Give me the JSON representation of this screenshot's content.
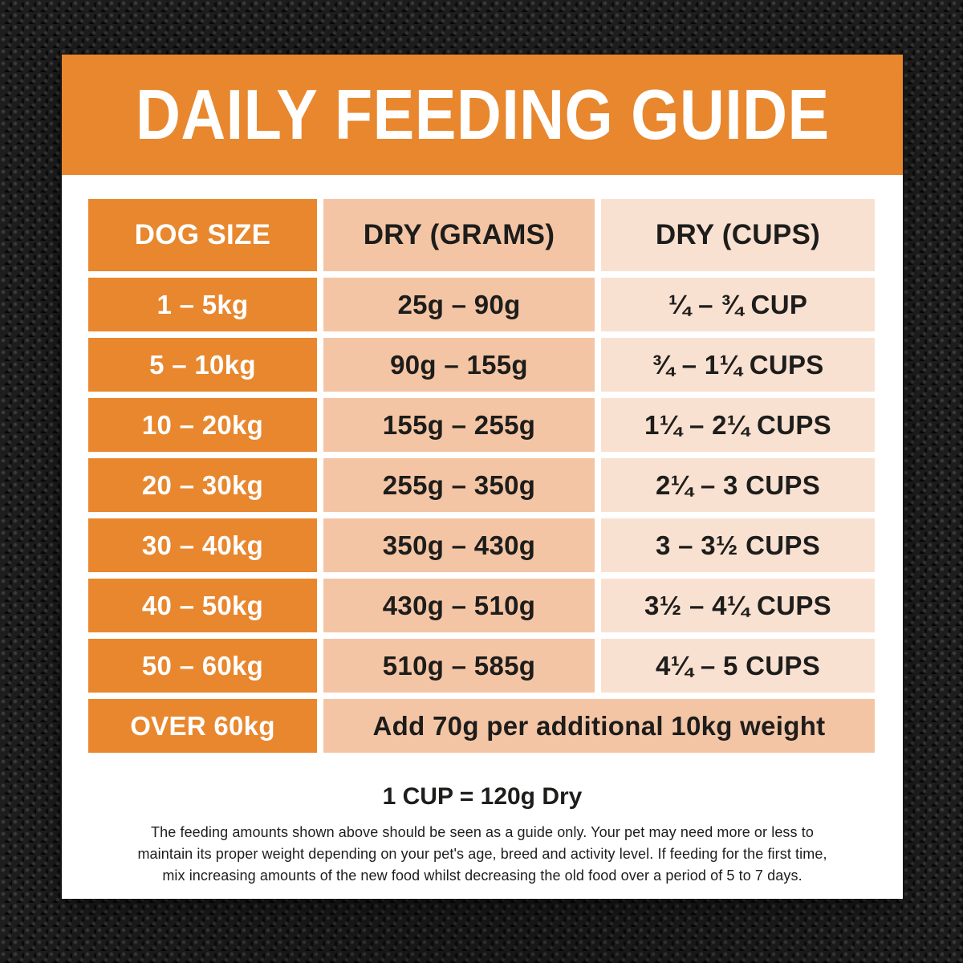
{
  "title": "DAILY FEEDING GUIDE",
  "colors": {
    "banner_orange": "#E8872E",
    "size_column_orange": "#E8872E",
    "grams_column_peach": "#F4C5A5",
    "cups_column_light_peach": "#F9E1D2",
    "card_background": "#FFFFFF",
    "text_dark": "#1D1D1B",
    "text_light": "#FFFFFF",
    "fabric_background": "#1D1D1D"
  },
  "chart_data": {
    "type": "table",
    "title": "DAILY FEEDING GUIDE",
    "columns": [
      "DOG SIZE",
      "DRY (GRAMS)",
      "DRY (CUPS)"
    ],
    "rows": [
      [
        "1 – 5kg",
        "25g – 90g",
        "¼ – ¾ CUP"
      ],
      [
        "5 – 10kg",
        "90g – 155g",
        "¾ – 1¼ CUPS"
      ],
      [
        "10 – 20kg",
        "155g – 255g",
        "1¼ – 2¼ CUPS"
      ],
      [
        "20 – 30kg",
        "255g – 350g",
        "2¼ – 3 CUPS"
      ],
      [
        "30 – 40kg",
        "350g – 430g",
        "3 – 3½ CUPS"
      ],
      [
        "40 – 50kg",
        "430g – 510g",
        "3½ – 4¼ CUPS"
      ],
      [
        "50 – 60kg",
        "510g – 585g",
        "4¼ – 5 CUPS"
      ]
    ],
    "rows_numeric": [
      {
        "weight_kg": [
          1,
          5
        ],
        "grams": [
          25,
          90
        ],
        "cups": [
          0.25,
          0.75
        ]
      },
      {
        "weight_kg": [
          5,
          10
        ],
        "grams": [
          90,
          155
        ],
        "cups": [
          0.75,
          1.25
        ]
      },
      {
        "weight_kg": [
          10,
          20
        ],
        "grams": [
          155,
          255
        ],
        "cups": [
          1.25,
          2.25
        ]
      },
      {
        "weight_kg": [
          20,
          30
        ],
        "grams": [
          255,
          350
        ],
        "cups": [
          2.25,
          3
        ]
      },
      {
        "weight_kg": [
          30,
          40
        ],
        "grams": [
          350,
          430
        ],
        "cups": [
          3,
          3.5
        ]
      },
      {
        "weight_kg": [
          40,
          50
        ],
        "grams": [
          430,
          510
        ],
        "cups": [
          3.5,
          4.25
        ]
      },
      {
        "weight_kg": [
          50,
          60
        ],
        "grams": [
          510,
          585
        ],
        "cups": [
          4.25,
          5
        ]
      }
    ],
    "footer_row": {
      "size": "OVER 60kg",
      "note": "Add 70g per additional 10kg weight"
    },
    "cup_equivalent_grams": 120
  },
  "footer": {
    "conversion": "1 CUP = 120g Dry",
    "disclaimer": "The feeding amounts shown above should be seen as a guide only. Your pet may need more or less to\nmaintain its proper weight depending on your pet's age, breed and activity level. If feeding for the first time,\nmix increasing amounts of the new food whilst decreasing the old food over a period of 5 to 7 days."
  }
}
